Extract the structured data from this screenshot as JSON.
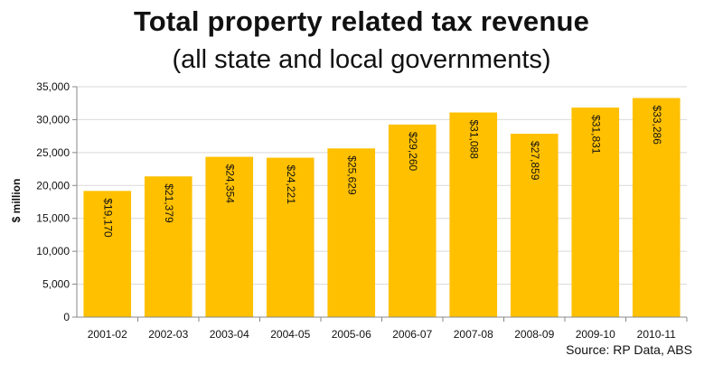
{
  "chart_data": {
    "type": "bar",
    "title": "Total property related tax revenue",
    "subtitle": "(all state and local governments)",
    "ylabel": "$ million",
    "xlabel": "",
    "categories": [
      "2001-02",
      "2002-03",
      "2003-04",
      "2004-05",
      "2005-06",
      "2006-07",
      "2007-08",
      "2008-09",
      "2009-10",
      "2010-11"
    ],
    "values": [
      19170,
      21379,
      24354,
      24221,
      25629,
      29260,
      31088,
      27859,
      31831,
      33286
    ],
    "data_labels": [
      "$19,170",
      "$21,379",
      "$24,354",
      "$24,221",
      "$25,629",
      "$29,260",
      "$31,088",
      "$27,859",
      "$31,831",
      "$33,286"
    ],
    "ylim": [
      0,
      35000
    ],
    "yticks": [
      0,
      5000,
      10000,
      15000,
      20000,
      25000,
      30000,
      35000
    ],
    "ytick_labels": [
      "0",
      "5,000",
      "10,000",
      "15,000",
      "20,000",
      "25,000",
      "30,000",
      "35,000"
    ],
    "grid": true,
    "legend": "none",
    "source": "Source: RP Data, ABS",
    "bar_color": "#FFC000",
    "grid_color": "#d9d9d9",
    "axis_color": "#888888"
  }
}
